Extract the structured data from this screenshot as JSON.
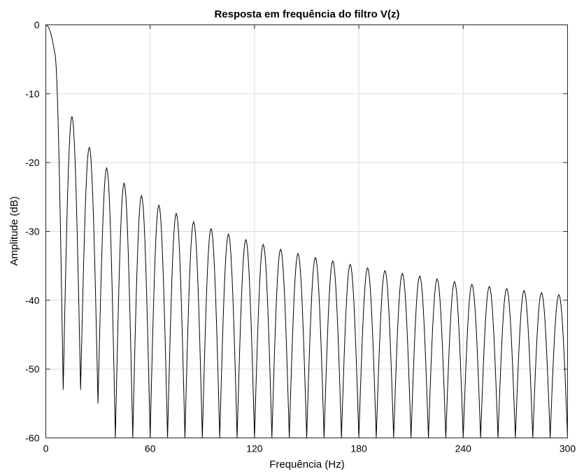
{
  "chart_data": {
    "type": "line",
    "title": "Resposta em frequência do filtro V(z)",
    "xlabel": "Frequência (Hz)",
    "ylabel": "Amplitude (dB)",
    "xlim": [
      0,
      300
    ],
    "ylim": [
      -60,
      0
    ],
    "xticks": [
      0,
      60,
      120,
      180,
      240,
      300
    ],
    "yticks": [
      0,
      -10,
      -20,
      -30,
      -40,
      -50,
      -60
    ],
    "grid": true,
    "legend": "none",
    "line_color": "#000000",
    "series": [
      {
        "description_of_shape": "moving-average (sinc) magnitude response",
        "null_spacing_hz": 10,
        "x": [
          0,
          5,
          10,
          15,
          20,
          25,
          30,
          35,
          40,
          45,
          50,
          55,
          60,
          65,
          70,
          75,
          80,
          85,
          90,
          95,
          100,
          105,
          110,
          115,
          120,
          125,
          130,
          135,
          140,
          145,
          150,
          155,
          160,
          165,
          170,
          175,
          180,
          185,
          190,
          195,
          200,
          205,
          210,
          215,
          220,
          225,
          230,
          235,
          240,
          245,
          250,
          255,
          260,
          265,
          270,
          275,
          280,
          285,
          290,
          295,
          300
        ],
        "y": [
          0,
          -3.9,
          -53,
          -13.3,
          -53,
          -17.8,
          -55,
          -20.8,
          -60,
          -23.0,
          -60,
          -24.8,
          -60,
          -26.2,
          -60,
          -27.4,
          -60,
          -28.6,
          -60,
          -29.6,
          -60,
          -30.4,
          -60,
          -31.2,
          -60,
          -31.9,
          -60,
          -32.6,
          -60,
          -33.2,
          -60,
          -33.8,
          -60,
          -34.3,
          -60,
          -34.8,
          -60,
          -35.3,
          -60,
          -35.7,
          -60,
          -36.1,
          -60,
          -36.5,
          -60,
          -36.9,
          -60,
          -37.3,
          -60,
          -37.7,
          -60,
          -38.0,
          -60,
          -38.3,
          -60,
          -38.6,
          -60,
          -38.9,
          -60,
          -39.2,
          -60
        ]
      }
    ]
  }
}
